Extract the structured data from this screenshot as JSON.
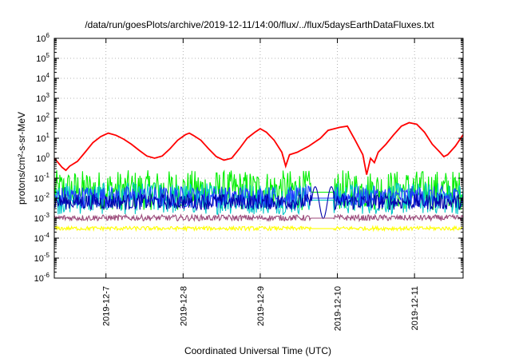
{
  "chart_data": {
    "type": "line",
    "title": "/data/run/goesPlots/archive/2019-12-11/14:00/flux/../flux/5daysEarthDataFluxes.txt",
    "xlabel": "Coordinated Universal Time (UTC)",
    "ylabel": "protons/cm²-s-sr-MeV",
    "yscale": "log",
    "ylim": [
      1e-06,
      1000000.0
    ],
    "xlim_days": [
      0,
      5.3
    ],
    "grid": true,
    "legend": "none",
    "y_ticks": [
      {
        "base": "10",
        "exp": "-6"
      },
      {
        "base": "10",
        "exp": "-5"
      },
      {
        "base": "10",
        "exp": "-4"
      },
      {
        "base": "10",
        "exp": "-3"
      },
      {
        "base": "10",
        "exp": "-2"
      },
      {
        "base": "10",
        "exp": "-1"
      },
      {
        "base": "10",
        "exp": "0"
      },
      {
        "base": "10",
        "exp": "1"
      },
      {
        "base": "10",
        "exp": "2"
      },
      {
        "base": "10",
        "exp": "3"
      },
      {
        "base": "10",
        "exp": "4"
      },
      {
        "base": "10",
        "exp": "5"
      },
      {
        "base": "10",
        "exp": "6"
      }
    ],
    "x_ticks": [
      {
        "label": "2019-12-7",
        "day": 0.67
      },
      {
        "label": "2019-12-8",
        "day": 1.67
      },
      {
        "label": "2019-12-9",
        "day": 2.67
      },
      {
        "label": "2019-12-10",
        "day": 3.67
      },
      {
        "label": "2019-12-11",
        "day": 4.67
      }
    ],
    "series": [
      {
        "color": "#ff0000",
        "points": [
          [
            0.0,
            1.0
          ],
          [
            0.05,
            0.6
          ],
          [
            0.1,
            0.35
          ],
          [
            0.15,
            0.25
          ],
          [
            0.2,
            0.4
          ],
          [
            0.3,
            0.7
          ],
          [
            0.4,
            2
          ],
          [
            0.5,
            6
          ],
          [
            0.6,
            12
          ],
          [
            0.7,
            18
          ],
          [
            0.8,
            14
          ],
          [
            0.9,
            9
          ],
          [
            1.0,
            5
          ],
          [
            1.1,
            2.5
          ],
          [
            1.2,
            1.3
          ],
          [
            1.3,
            1.0
          ],
          [
            1.4,
            1.3
          ],
          [
            1.5,
            3
          ],
          [
            1.6,
            8
          ],
          [
            1.7,
            15
          ],
          [
            1.75,
            18
          ],
          [
            1.8,
            14
          ],
          [
            1.9,
            8
          ],
          [
            2.0,
            3
          ],
          [
            2.1,
            1.2
          ],
          [
            2.2,
            0.8
          ],
          [
            2.3,
            1.0
          ],
          [
            2.4,
            3
          ],
          [
            2.5,
            10
          ],
          [
            2.6,
            20
          ],
          [
            2.67,
            30
          ],
          [
            2.75,
            20
          ],
          [
            2.85,
            8
          ],
          [
            2.95,
            2
          ],
          [
            3.0,
            0.4
          ],
          [
            3.05,
            1.5
          ],
          [
            3.15,
            2
          ],
          [
            3.3,
            4
          ],
          [
            3.45,
            10
          ],
          [
            3.55,
            25
          ],
          [
            3.7,
            35
          ],
          [
            3.8,
            40
          ],
          [
            3.9,
            8
          ],
          [
            4.0,
            1.5
          ],
          [
            4.05,
            0.15
          ],
          [
            4.1,
            1
          ],
          [
            4.15,
            0.6
          ],
          [
            4.2,
            2
          ],
          [
            4.3,
            5
          ],
          [
            4.4,
            15
          ],
          [
            4.5,
            40
          ],
          [
            4.6,
            60
          ],
          [
            4.65,
            55
          ],
          [
            4.7,
            50
          ],
          [
            4.8,
            20
          ],
          [
            4.9,
            5
          ],
          [
            5.0,
            2
          ],
          [
            5.05,
            1.2
          ],
          [
            5.1,
            1.5
          ],
          [
            5.2,
            4
          ],
          [
            5.3,
            15
          ]
        ]
      },
      {
        "color": "#00ee00",
        "base": 0.02,
        "spread": 1.0
      },
      {
        "color": "#00c8c8",
        "base": 0.008,
        "spread": 0.8
      },
      {
        "color": "#1e3cff",
        "base": 0.01,
        "spread": 0.55
      },
      {
        "color": "#0000aa",
        "base": 0.006,
        "spread": 0.4
      },
      {
        "color": "#9b4a7a",
        "base": 0.001,
        "spread": 0.15
      },
      {
        "color": "#ffff00",
        "base": 0.0003,
        "spread": 0.1
      }
    ]
  }
}
